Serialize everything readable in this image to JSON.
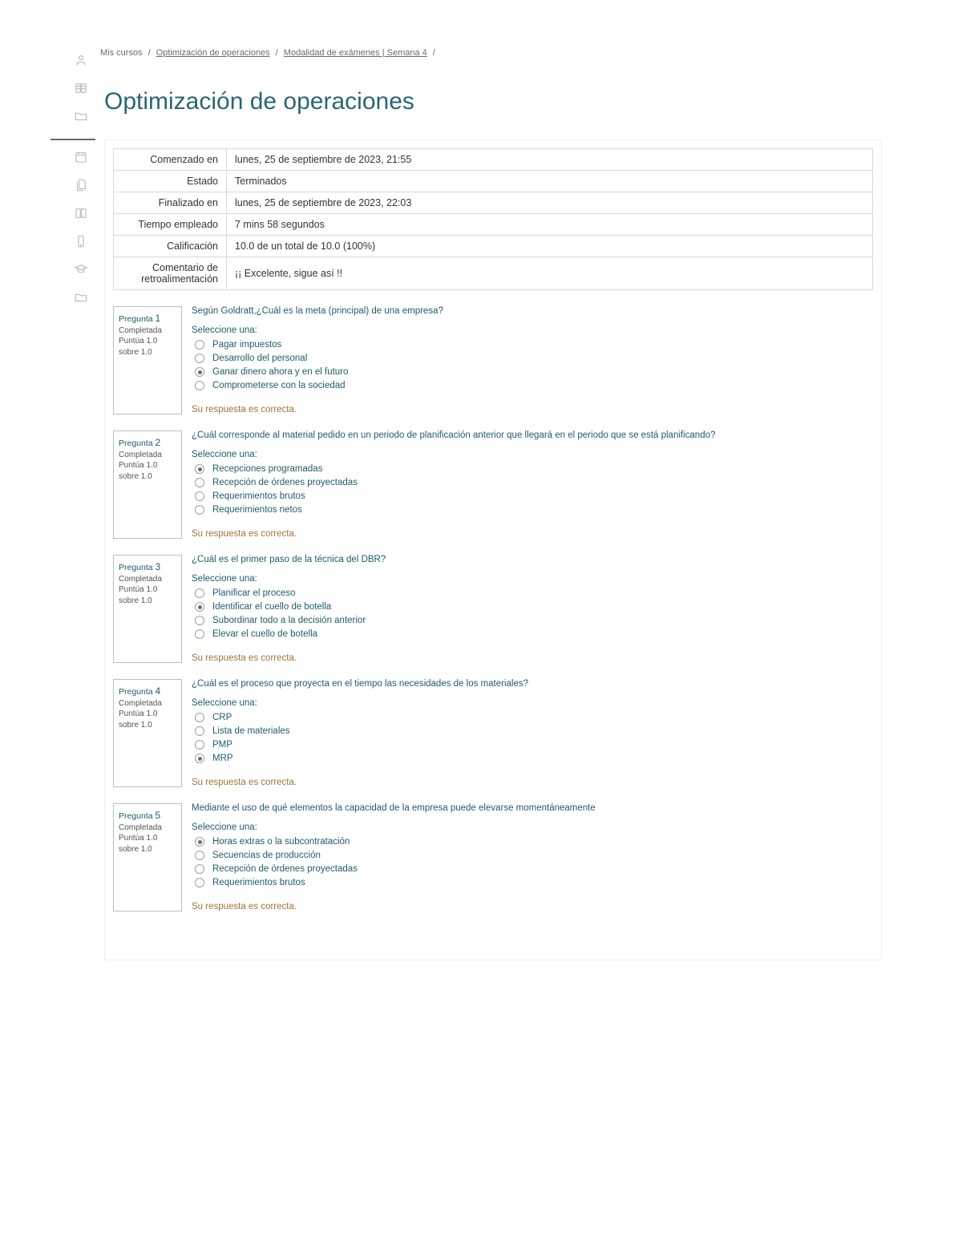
{
  "breadcrumb": {
    "item0": "Mis cursos",
    "item1": "Optimización de operaciones",
    "item2": "Modalidad de exámenes | Semana 4"
  },
  "title": "Optimización de operaciones",
  "summary": {
    "rows": [
      {
        "label": "Comenzado en",
        "value": "lunes, 25 de septiembre de 2023, 21:55"
      },
      {
        "label": "Estado",
        "value": "Terminados"
      },
      {
        "label": "Finalizado en",
        "value": "lunes, 25 de septiembre de 2023, 22:03"
      },
      {
        "label": "Tiempo empleado",
        "value": "7 mins 58 segundos"
      },
      {
        "label": "Calificación",
        "value": "10.0 de un total de 10.0 (100%)"
      },
      {
        "label": "Comentario de retroalimentación",
        "value": "¡¡ Excelente, sigue así !!"
      }
    ]
  },
  "common": {
    "question_label": "Pregunta",
    "status": "Completada",
    "score_line1": "Puntúa 1.0",
    "score_line2": "sobre 1.0",
    "select_one": "Seleccione una:",
    "feedback_correct": "Su respuesta es correcta."
  },
  "questions": [
    {
      "num": "1",
      "text": "Según Goldratt,¿Cuál es  la meta (principal) de una empresa?",
      "selected": 2,
      "options": [
        "Pagar impuestos",
        "Desarrollo del personal",
        "Ganar dinero ahora y en el futuro",
        "Comprometerse con la sociedad"
      ]
    },
    {
      "num": "2",
      "text": "¿Cuál corresponde al material pedido en un periodo de planificación anterior que llegará en el periodo que se está planificando?",
      "selected": 0,
      "options": [
        "Recepciones programadas",
        "Recepción de órdenes proyectadas",
        "Requerimientos brutos",
        "Requerimientos netos"
      ]
    },
    {
      "num": "3",
      "text": "¿Cuál es el primer paso de la técnica del DBR?",
      "selected": 1,
      "options": [
        "Planificar el proceso",
        "Identificar el cuello de botella",
        "Subordinar todo a la decisión anterior",
        "Elevar el cuello de botella"
      ]
    },
    {
      "num": "4",
      "text": "¿Cuál es el proceso que  proyecta en el tiempo las necesidades de los materiales?",
      "selected": 3,
      "options": [
        "CRP",
        "Lista de materiales",
        "PMP",
        "MRP"
      ]
    },
    {
      "num": "5",
      "text": "Mediante el uso de qué elementos la capacidad de la empresa puede elevarse momentáneamente",
      "selected": 0,
      "options": [
        "Horas extras o la subcontratación",
        "Secuencias de producción",
        "Recepción de órdenes proyectadas",
        "Requerimientos brutos"
      ]
    }
  ]
}
